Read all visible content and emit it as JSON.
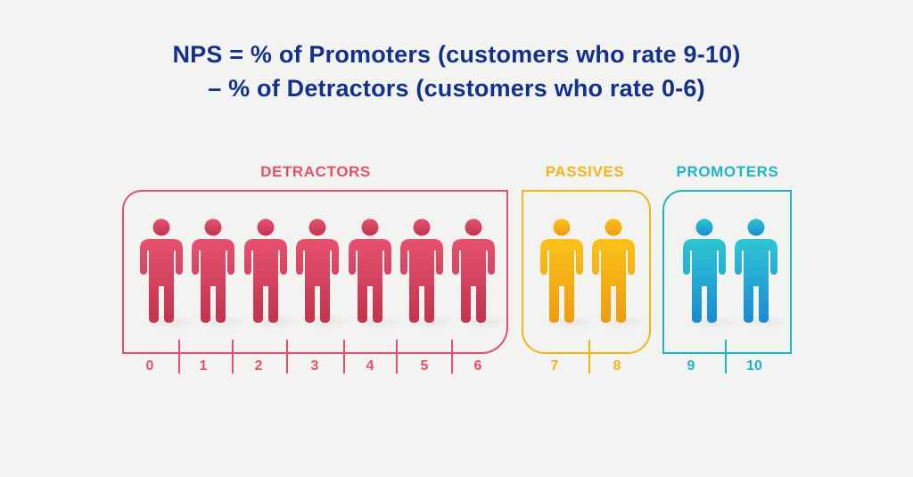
{
  "title": {
    "line1": "NPS = % of Promoters (customers who rate 9-10)",
    "line2": "– % of Detractors (customers who rate 0-6)"
  },
  "colors": {
    "title": "#14318a",
    "detractors": "#e2506b",
    "passives": "#f4b316",
    "promoters": "#1fb4c4",
    "detractors_figure_top": "#e65170",
    "detractors_figure_bottom": "#c1344d",
    "passives_figure_top": "#f8c21a",
    "passives_figure_bottom": "#f09b10",
    "promoters_figure_top": "#2ec6d2",
    "promoters_figure_bottom": "#1b8ad4"
  },
  "groups": {
    "detractors": {
      "label": "DETRACTORS",
      "scores": [
        "0",
        "1",
        "2",
        "3",
        "4",
        "5",
        "6"
      ]
    },
    "passives": {
      "label": "PASSIVES",
      "scores": [
        "7",
        "8"
      ]
    },
    "promoters": {
      "label": "PROMOTERS",
      "scores": [
        "9",
        "10"
      ]
    }
  },
  "icons": {
    "figure": "person-icon"
  }
}
